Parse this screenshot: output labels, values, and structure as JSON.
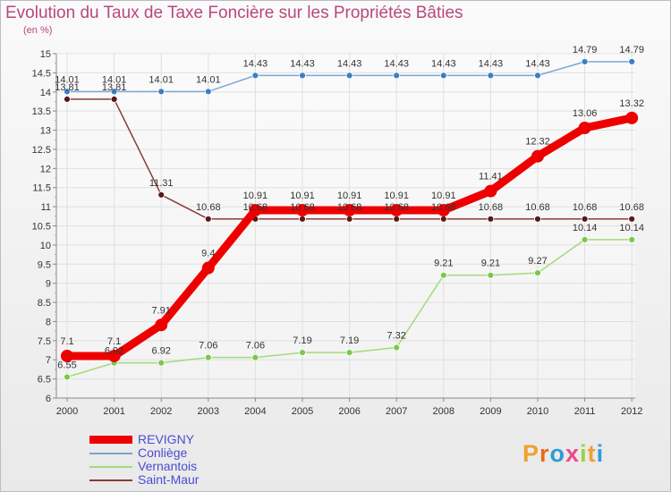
{
  "title": "Evolution du Taux de Taxe Foncière sur les Propriétés Bâties",
  "unit": "(en %)",
  "logo": {
    "letters": [
      "P",
      "r",
      "o",
      "x",
      "i",
      "t",
      "i"
    ],
    "colors": [
      "#f0a030",
      "#e86a1a",
      "#2f9bd8",
      "#e84a8a",
      "#9ad33a",
      "#f0a030",
      "#2f9bd8"
    ]
  },
  "chart_data": {
    "type": "line",
    "title": "Evolution du Taux de Taxe Foncière sur les Propriétés Bâties",
    "ylabel": "(en %)",
    "x": [
      "2000",
      "2001",
      "2002",
      "2003",
      "2004",
      "2005",
      "2006",
      "2007",
      "2008",
      "2009",
      "2010",
      "2011",
      "2012"
    ],
    "ylim": [
      6,
      15
    ],
    "yticks": [
      "6",
      "6.5",
      "7",
      "7.5",
      "8",
      "8.5",
      "9",
      "9.5",
      "10",
      "10.5",
      "11",
      "11.5",
      "12",
      "12.5",
      "13",
      "13.5",
      "14",
      "14.5",
      "15"
    ],
    "series": [
      {
        "name": "REVIGNY",
        "color": "#ee0000",
        "point_color": "#ee0000",
        "values": [
          7.1,
          7.1,
          7.91,
          9.4,
          10.91,
          10.91,
          10.91,
          10.91,
          10.91,
          11.41,
          12.32,
          13.06,
          13.32
        ],
        "labels": [
          "7.1",
          "7.1",
          "7.91",
          "9.4",
          "10.91",
          "10.91",
          "10.91",
          "10.91",
          "10.91",
          "11.41",
          "12.32",
          "13.06",
          "13.32"
        ]
      },
      {
        "name": "Conliège",
        "color": "#7aa6d6",
        "point_color": "#3a7fc4",
        "values": [
          14.01,
          14.01,
          14.01,
          14.01,
          14.43,
          14.43,
          14.43,
          14.43,
          14.43,
          14.43,
          14.43,
          14.79,
          14.79
        ],
        "labels": [
          "14.01",
          "14.01",
          "14.01",
          "14.01",
          "14.43",
          "14.43",
          "14.43",
          "14.43",
          "14.43",
          "14.43",
          "14.43",
          "14.79",
          "14.79"
        ]
      },
      {
        "name": "Vernantois",
        "color": "#a2dc7a",
        "point_color": "#7cc84a",
        "values": [
          6.55,
          6.92,
          6.92,
          7.06,
          7.06,
          7.19,
          7.19,
          7.32,
          9.21,
          9.21,
          9.27,
          10.14,
          10.14
        ],
        "labels": [
          "6.55",
          "6.92",
          "6.92",
          "7.06",
          "7.06",
          "7.19",
          "7.19",
          "7.32",
          "9.21",
          "9.21",
          "9.27",
          "10.14",
          "10.14"
        ]
      },
      {
        "name": "Saint-Maur",
        "color": "#8a3b3b",
        "point_color": "#5a1818",
        "values": [
          13.81,
          13.81,
          11.31,
          10.68,
          10.68,
          10.68,
          10.68,
          10.68,
          10.68,
          10.68,
          10.68,
          10.68,
          10.68
        ],
        "labels": [
          "13.81",
          "13.81",
          "11.31",
          "10.68",
          "10.68",
          "10.68",
          "10.68",
          "10.68",
          "10.68",
          "10.68",
          "10.68",
          "10.68",
          "10.68"
        ]
      }
    ],
    "legend": [
      {
        "name": "REVIGNY",
        "color": "#ee0000"
      },
      {
        "name": "Conliège",
        "color": "#7aa6d6"
      },
      {
        "name": "Vernantois",
        "color": "#a2dc7a"
      },
      {
        "name": "Saint-Maur",
        "color": "#8a3b3b"
      }
    ]
  }
}
